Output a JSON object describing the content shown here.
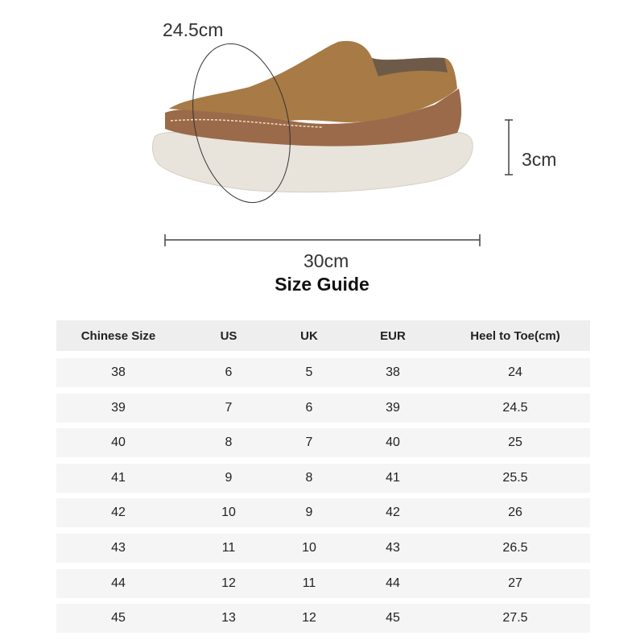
{
  "shoe": {
    "circumference_label": "24.5cm",
    "heel_height_label": "3cm",
    "length_label": "30cm",
    "colors": {
      "upper": "#a87a45",
      "mesh": "#9a6a4a",
      "sole": "#e8e4dc"
    }
  },
  "title": "Size Guide",
  "table": {
    "headers": [
      "Chinese Size",
      "US",
      "UK",
      "EUR",
      "Heel to Toe(cm)"
    ],
    "rows": [
      [
        "38",
        "6",
        "5",
        "38",
        "24"
      ],
      [
        "39",
        "7",
        "6",
        "39",
        "24.5"
      ],
      [
        "40",
        "8",
        "7",
        "40",
        "25"
      ],
      [
        "41",
        "9",
        "8",
        "41",
        "25.5"
      ],
      [
        "42",
        "10",
        "9",
        "42",
        "26"
      ],
      [
        "43",
        "11",
        "10",
        "43",
        "26.5"
      ],
      [
        "44",
        "12",
        "11",
        "44",
        "27"
      ],
      [
        "45",
        "13",
        "12",
        "45",
        "27.5"
      ]
    ]
  }
}
